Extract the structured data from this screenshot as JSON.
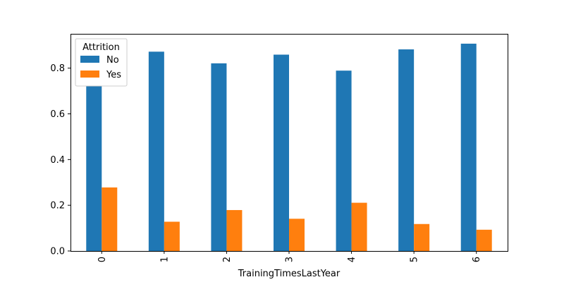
{
  "chart_data": {
    "type": "bar",
    "categories": [
      "0",
      "1",
      "2",
      "3",
      "4",
      "5",
      "6"
    ],
    "series": [
      {
        "name": "No",
        "values": [
          0.722,
          0.872,
          0.821,
          0.859,
          0.789,
          0.882,
          0.907
        ],
        "color": "#1f77b4"
      },
      {
        "name": "Yes",
        "values": [
          0.278,
          0.128,
          0.179,
          0.141,
          0.211,
          0.118,
          0.093
        ],
        "color": "#ff7f0e"
      }
    ],
    "title": "",
    "xlabel": "TrainingTimesLastYear",
    "ylabel": "",
    "ylim": [
      0,
      0.95
    ],
    "yticks": [
      0.0,
      0.2,
      0.4,
      0.6,
      0.8
    ],
    "ytick_labels": [
      "0.0",
      "0.2",
      "0.4",
      "0.6",
      "0.8"
    ],
    "xtick_rotation": "vertical",
    "legend": {
      "title": "Attrition",
      "location": "upper-left"
    },
    "grid": false
  }
}
